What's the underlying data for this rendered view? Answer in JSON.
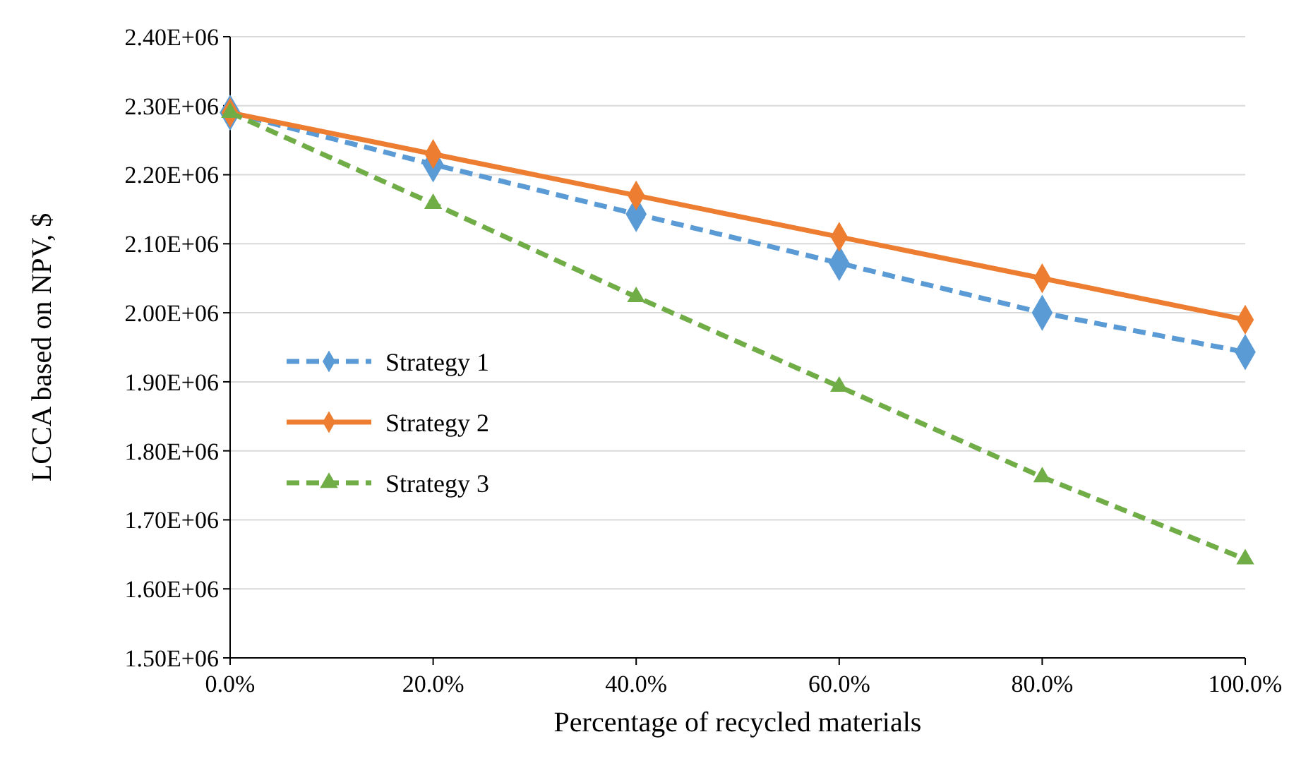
{
  "chart_data": {
    "type": "line",
    "xlabel": "Percentage of recycled materials",
    "ylabel": "LCCA based on NPV, $",
    "x": [
      0,
      20,
      40,
      60,
      80,
      100
    ],
    "series": [
      {
        "name": "Strategy 1",
        "color": "#5b9bd5",
        "marker": "diamond",
        "line_style": "dashed",
        "values": [
          2290000.0,
          2215000.0,
          2143000.0,
          2072000.0,
          2000000.0,
          1943000.0
        ]
      },
      {
        "name": "Strategy 2",
        "color": "#ed7d31",
        "marker": "diamond",
        "line_style": "solid",
        "values": [
          2290000.0,
          2230000.0,
          2170000.0,
          2110000.0,
          2050000.0,
          1990000.0
        ]
      },
      {
        "name": "Strategy 3",
        "color": "#70ad47",
        "marker": "triangle",
        "line_style": "dashed",
        "values": [
          2290000.0,
          2158000.0,
          2023000.0,
          1893000.0,
          1762000.0,
          1643000.0
        ]
      }
    ],
    "xlim": [
      0,
      100
    ],
    "xticks": [
      {
        "value": 0,
        "label": "0.0%"
      },
      {
        "value": 20,
        "label": "20.0%"
      },
      {
        "value": 40,
        "label": "40.0%"
      },
      {
        "value": 60,
        "label": "60.0%"
      },
      {
        "value": 80,
        "label": "80.0%"
      },
      {
        "value": 100,
        "label": "100.0%"
      }
    ],
    "ylim": [
      1500000.0,
      2400000.0
    ],
    "yticks": [
      {
        "value": 1500000.0,
        "label": "1.50E+06"
      },
      {
        "value": 1600000.0,
        "label": "1.60E+06"
      },
      {
        "value": 1700000.0,
        "label": "1.70E+06"
      },
      {
        "value": 1800000.0,
        "label": "1.80E+06"
      },
      {
        "value": 1900000.0,
        "label": "1.90E+06"
      },
      {
        "value": 2000000.0,
        "label": "2.00E+06"
      },
      {
        "value": 2100000.0,
        "label": "2.10E+06"
      },
      {
        "value": 2200000.0,
        "label": "2.20E+06"
      },
      {
        "value": 2300000.0,
        "label": "2.30E+06"
      },
      {
        "value": 2400000.0,
        "label": "2.40E+06"
      }
    ],
    "grid": "y",
    "legend": "left"
  }
}
